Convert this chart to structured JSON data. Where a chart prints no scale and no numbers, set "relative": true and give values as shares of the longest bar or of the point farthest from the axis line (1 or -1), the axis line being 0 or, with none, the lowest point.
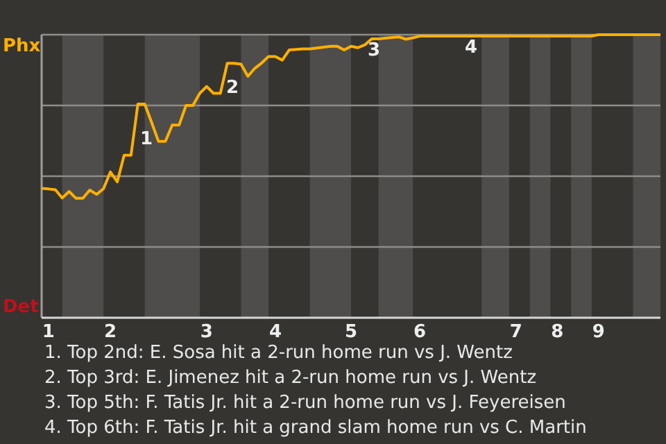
{
  "chart_data": {
    "type": "line",
    "relative": true,
    "grid": "y",
    "color": "#ffb000",
    "categories": [
      null,
      "1",
      null,
      null,
      null,
      null,
      null,
      null,
      null,
      null,
      "2",
      null,
      null,
      null,
      null,
      null,
      null,
      null,
      null,
      null,
      null,
      null,
      null,
      null,
      "3",
      null,
      null,
      null,
      null,
      null,
      null,
      null,
      null,
      null,
      "4",
      null,
      null,
      null,
      null,
      null,
      null,
      null,
      null,
      null,
      null,
      "5",
      null,
      null,
      null,
      null,
      null,
      null,
      null,
      null,
      null,
      "6",
      null,
      null,
      null,
      null,
      null,
      null,
      null,
      null,
      null,
      null,
      null,
      null,
      null,
      "7",
      null,
      null,
      null,
      null,
      null,
      "8",
      null,
      null,
      null,
      null,
      null,
      "9",
      null,
      null,
      null,
      null,
      null,
      null,
      null,
      null,
      null
    ],
    "values": [
      0.457,
      0.455,
      0.452,
      0.423,
      0.446,
      0.422,
      0.422,
      0.451,
      0.436,
      0.456,
      0.515,
      0.48,
      0.574,
      0.574,
      0.755,
      0.755,
      0.69,
      0.623,
      0.623,
      0.681,
      0.681,
      0.75,
      0.75,
      0.793,
      0.817,
      0.793,
      0.793,
      0.899,
      0.899,
      0.896,
      0.853,
      0.881,
      0.9,
      0.923,
      0.923,
      0.91,
      0.946,
      0.948,
      0.95,
      0.95,
      0.953,
      0.956,
      0.959,
      0.959,
      0.946,
      0.959,
      0.954,
      0.964,
      0.985,
      0.985,
      0.988,
      0.99,
      0.992,
      0.984,
      0.989,
      0.995,
      0.995,
      0.995,
      0.995,
      0.995,
      0.995,
      0.995,
      0.995,
      0.995,
      0.995,
      0.995,
      0.995,
      0.995,
      0.995,
      0.995,
      0.995,
      0.995,
      0.995,
      0.995,
      0.995,
      0.995,
      0.995,
      0.995,
      0.995,
      0.995,
      0.995,
      1,
      1,
      1,
      1,
      1,
      1,
      1,
      1,
      1,
      1
    ],
    "annotations": [
      "Phx",
      "Det",
      "1",
      "2",
      "3",
      "4",
      "1. Top 2nd: E. Sosa hit a 2-run home run vs J. Wentz",
      "2. Top 3rd: E. Jimenez hit a 2-run home run vs J. Wentz",
      "3. Top 5th: F. Tatis Jr. hit a 2-run home run vs J. Feyereisen",
      "4. Top 6th: F. Tatis Jr. hit a grand slam home run vs C. Martin"
    ]
  }
}
